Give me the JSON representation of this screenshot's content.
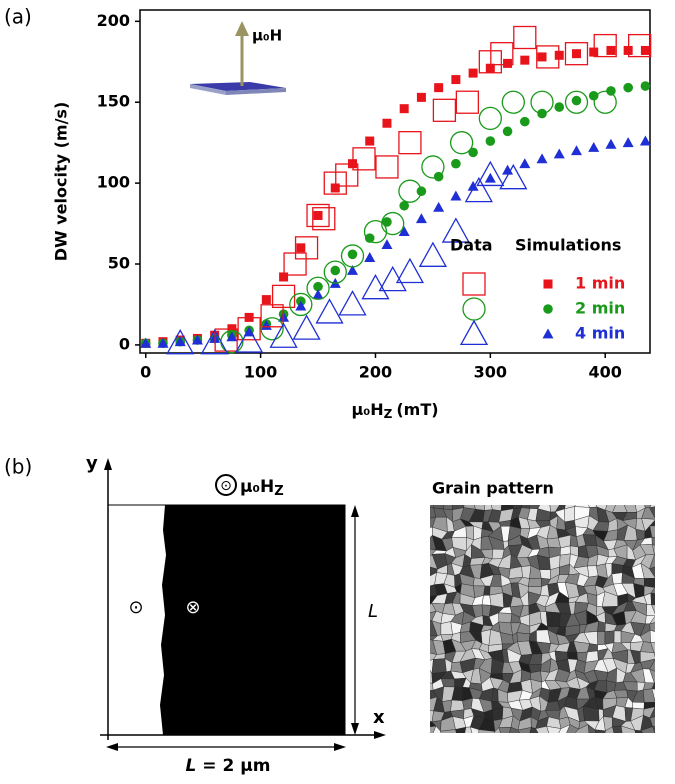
{
  "chart_data": {
    "type": "scatter",
    "panel_label": "(a)",
    "y_label": "DW velocity (m/s)",
    "x_label": {
      "main": "μ₀H",
      "sub": "Z",
      "unit": "(mT)"
    },
    "inset_label": "μ₀H",
    "xlim": [
      -5,
      439
    ],
    "ylim": [
      -5,
      207
    ],
    "xticks": [
      0,
      100,
      200,
      300,
      400
    ],
    "yticks": [
      0,
      50,
      100,
      150,
      200
    ],
    "grid": false,
    "legend": {
      "headers": [
        "Data",
        "Simulations"
      ],
      "corner": "lower right"
    },
    "series": [
      {
        "name": "1 min",
        "color": "#e8141c",
        "marker": "square",
        "filled": true,
        "x": [
          0,
          15,
          30,
          45,
          60,
          75,
          90,
          105,
          120,
          135,
          150,
          165,
          180,
          195,
          210,
          225,
          240,
          255,
          270,
          285,
          300,
          315,
          330,
          345,
          360,
          375,
          390,
          405,
          420,
          435
        ],
        "values": [
          1,
          2,
          3,
          4,
          6,
          10,
          17,
          28,
          42,
          60,
          80,
          97,
          112,
          126,
          137,
          146,
          153,
          159,
          164,
          168,
          171,
          174,
          176,
          178,
          179,
          180,
          181,
          182,
          182,
          182
        ]
      },
      {
        "name": "2 min",
        "color": "#1a9a1a",
        "marker": "circle",
        "filled": true,
        "x": [
          0,
          15,
          30,
          45,
          60,
          75,
          90,
          105,
          120,
          135,
          150,
          165,
          180,
          195,
          210,
          225,
          240,
          255,
          270,
          285,
          300,
          315,
          330,
          345,
          360,
          375,
          390,
          405,
          420,
          435
        ],
        "values": [
          1,
          1,
          2,
          3,
          4,
          6,
          9,
          13,
          19,
          27,
          36,
          46,
          56,
          66,
          76,
          86,
          95,
          104,
          112,
          119,
          126,
          132,
          138,
          143,
          147,
          151,
          154,
          157,
          159,
          160
        ]
      },
      {
        "name": "4 min",
        "color": "#1f2fd6",
        "marker": "triangle",
        "filled": true,
        "x": [
          0,
          15,
          30,
          45,
          60,
          75,
          90,
          105,
          120,
          135,
          150,
          165,
          180,
          195,
          210,
          225,
          240,
          255,
          270,
          285,
          300,
          315,
          330,
          345,
          360,
          375,
          390,
          405,
          420,
          435
        ],
        "values": [
          1,
          1,
          2,
          3,
          4,
          5,
          8,
          12,
          17,
          24,
          31,
          38,
          46,
          54,
          62,
          70,
          78,
          85,
          92,
          98,
          103,
          108,
          112,
          115,
          118,
          120,
          122,
          124,
          125,
          126
        ]
      },
      {
        "color": "#e8141c",
        "marker": "square",
        "filled": false,
        "x": [
          70,
          90,
          110,
          120,
          130,
          140,
          150,
          155,
          165,
          175,
          190,
          210,
          230,
          260,
          280,
          300,
          310,
          330,
          350,
          375,
          400,
          430
        ],
        "values": [
          3,
          10,
          18,
          30,
          50,
          60,
          80,
          78,
          100,
          105,
          115,
          110,
          125,
          145,
          150,
          175,
          180,
          190,
          178,
          180,
          185,
          185
        ]
      },
      {
        "color": "#1a9a1a",
        "marker": "circle",
        "filled": false,
        "x": [
          75,
          110,
          135,
          150,
          165,
          180,
          200,
          215,
          230,
          250,
          275,
          300,
          320,
          345,
          375,
          400
        ],
        "values": [
          2,
          10,
          25,
          35,
          45,
          55,
          70,
          75,
          95,
          110,
          125,
          140,
          150,
          150,
          150,
          150
        ]
      },
      {
        "color": "#1f2fd6",
        "marker": "triangle",
        "filled": false,
        "x": [
          30,
          60,
          90,
          120,
          140,
          160,
          180,
          200,
          215,
          230,
          250,
          270,
          290,
          300,
          320
        ],
        "values": [
          1,
          1,
          2,
          5,
          10,
          20,
          25,
          35,
          40,
          45,
          55,
          70,
          95,
          105,
          103
        ]
      }
    ]
  },
  "panel_b": {
    "panel_label": "(b)",
    "y_axis": "y",
    "x_axis": "x",
    "field_label": {
      "main": "μ₀H",
      "sub": "Z"
    },
    "up_symbol": "⊙",
    "down_symbol": "⊗",
    "side_label": "L",
    "width_label": {
      "var": "L",
      "rest": " = 2 μm"
    },
    "grain_title": "Grain pattern"
  }
}
